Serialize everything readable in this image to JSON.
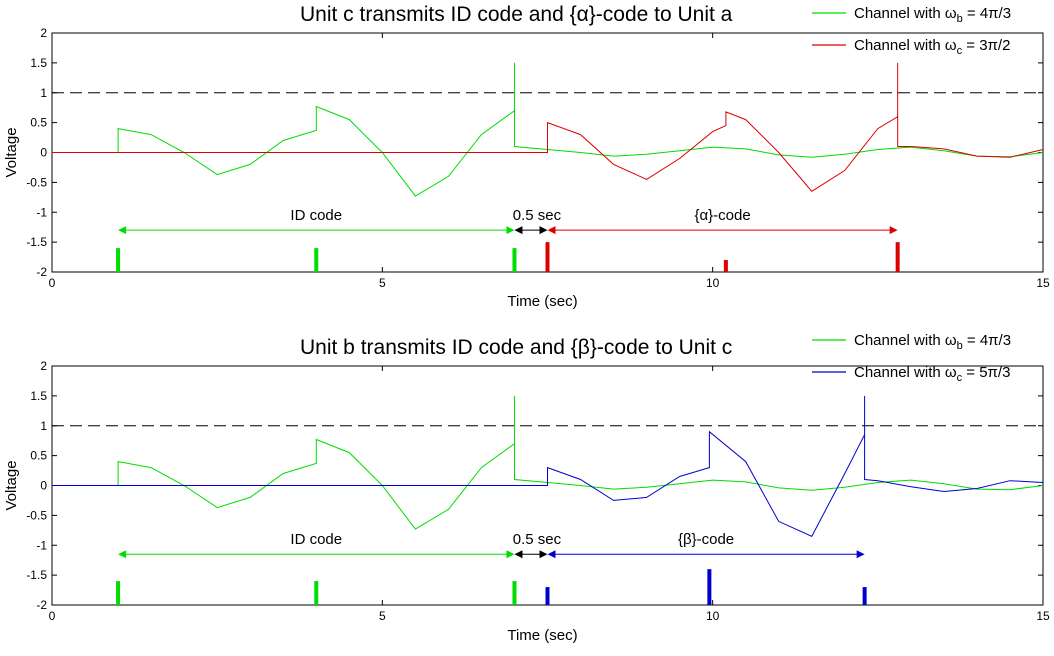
{
  "chart_data": [
    {
      "type": "line",
      "title": "Unit c transmits ID code and {α}-code to Unit a",
      "xlabel": "Time (sec)",
      "ylabel": "Voltage",
      "xlim": [
        0,
        15
      ],
      "ylim": [
        -2,
        2
      ],
      "xticks": [
        0,
        5,
        10,
        15
      ],
      "xtick_labels": [
        "0",
        "5",
        "10",
        "15"
      ],
      "yticks": [
        -2,
        -1.5,
        -1,
        -0.5,
        0,
        0.5,
        1,
        1.5,
        2
      ],
      "ytick_labels": [
        "-2",
        "-1.5",
        "-1",
        "-0.5",
        "0",
        "0.5",
        "1",
        "1.5",
        "2"
      ],
      "grid": false,
      "legend_position": "top-right",
      "threshold": 1,
      "series": [
        {
          "name": "Channel with ωb = 4π/3",
          "legend_sub": "b",
          "legend_value": "= 4π/3",
          "color": "#00dd00",
          "x": [
            0,
            1,
            1,
            1.5,
            2,
            2.5,
            3,
            3.5,
            4,
            4,
            4.5,
            5,
            5.5,
            6,
            6.5,
            7,
            7,
            7.5,
            8,
            8.5,
            9,
            9.5,
            10,
            10.5,
            11,
            11.5,
            12,
            12.5,
            13,
            13.5,
            14,
            14.5,
            15
          ],
          "y": [
            0,
            0,
            0.4,
            0.3,
            0.0,
            -0.37,
            -0.2,
            0.2,
            0.37,
            0.77,
            0.55,
            0.0,
            -0.73,
            -0.4,
            0.3,
            0.7,
            0.1,
            0.05,
            0.0,
            -0.06,
            -0.03,
            0.03,
            0.09,
            0.06,
            -0.04,
            -0.08,
            -0.03,
            0.05,
            0.09,
            0.03,
            -0.06,
            -0.07,
            0.0
          ]
        },
        {
          "name": "Channel with ωc = 3π/2",
          "legend_sub": "c",
          "legend_value": "= 3π/2",
          "color": "#dd0000",
          "x": [
            0,
            7.5,
            7.5,
            8,
            8.5,
            9,
            9.5,
            10,
            10.2,
            10.2,
            10.5,
            11,
            11.5,
            12,
            12.5,
            12.8,
            12.8,
            13,
            13.5,
            14,
            14.5,
            15
          ],
          "y": [
            0,
            0,
            0.5,
            0.3,
            -0.2,
            -0.45,
            -0.1,
            0.35,
            0.45,
            0.68,
            0.55,
            0.0,
            -0.65,
            -0.3,
            0.4,
            0.6,
            0.1,
            0.1,
            0.06,
            -0.06,
            -0.08,
            0.05
          ]
        }
      ],
      "markers": [
        {
          "x": 1,
          "height": 0.4,
          "color": "#00dd00"
        },
        {
          "x": 4,
          "height": 0.4,
          "color": "#00dd00"
        },
        {
          "x": 7,
          "height": 0.4,
          "color": "#00dd00"
        },
        {
          "x": 7.5,
          "height": 0.5,
          "color": "#dd0000"
        },
        {
          "x": 10.2,
          "height": 0.2,
          "color": "#dd0000"
        },
        {
          "x": 12.8,
          "height": 0.5,
          "color": "#dd0000"
        }
      ],
      "annotations": [
        {
          "text": "ID code",
          "x1": 1,
          "x2": 7,
          "y": -1.3,
          "color": "#00dd00"
        },
        {
          "text": "0.5 sec",
          "x1": 7,
          "x2": 7.5,
          "y": -1.3,
          "color": "#000000"
        },
        {
          "text": "{α}-code",
          "x1": 7.5,
          "x2": 12.8,
          "y": -1.3,
          "color": "#dd0000"
        }
      ]
    },
    {
      "type": "line",
      "title": "Unit b transmits ID code and {β}-code to Unit c",
      "xlabel": "Time (sec)",
      "ylabel": "Voltage",
      "xlim": [
        0,
        15
      ],
      "ylim": [
        -2,
        2
      ],
      "xticks": [
        0,
        5,
        10,
        15
      ],
      "xtick_labels": [
        "0",
        "5",
        "10",
        "15"
      ],
      "yticks": [
        -2,
        -1.5,
        -1,
        -0.5,
        0,
        0.5,
        1,
        1.5,
        2
      ],
      "ytick_labels": [
        "-2",
        "-1.5",
        "-1",
        "-0.5",
        "0",
        "0.5",
        "1",
        "1.5",
        "2"
      ],
      "grid": false,
      "legend_position": "top-right",
      "threshold": 1,
      "series": [
        {
          "name": "Channel with ωb = 4π/3",
          "legend_sub": "b",
          "legend_value": "= 4π/3",
          "color": "#00dd00",
          "x": [
            0,
            1,
            1,
            1.5,
            2,
            2.5,
            3,
            3.5,
            4,
            4,
            4.5,
            5,
            5.5,
            6,
            6.5,
            7,
            7,
            7.5,
            8,
            8.5,
            9,
            9.5,
            10,
            10.5,
            11,
            11.5,
            12,
            12.5,
            13,
            13.5,
            14,
            14.5,
            15
          ],
          "y": [
            0,
            0,
            0.4,
            0.3,
            0.0,
            -0.37,
            -0.2,
            0.2,
            0.37,
            0.77,
            0.55,
            0.0,
            -0.73,
            -0.4,
            0.3,
            0.7,
            0.1,
            0.05,
            0.0,
            -0.06,
            -0.03,
            0.03,
            0.09,
            0.06,
            -0.04,
            -0.08,
            -0.03,
            0.05,
            0.09,
            0.03,
            -0.06,
            -0.07,
            0.0
          ]
        },
        {
          "name": "Channel with ωc = 5π/3",
          "legend_sub": "c",
          "legend_value": "= 5π/3",
          "color": "#0000cc",
          "x": [
            0,
            7.5,
            7.5,
            8,
            8.5,
            9,
            9.5,
            9.95,
            9.95,
            10.5,
            11,
            11.5,
            12,
            12.3,
            12.3,
            12.5,
            13,
            13.5,
            14,
            14.5,
            15
          ],
          "y": [
            0,
            0,
            0.3,
            0.1,
            -0.25,
            -0.2,
            0.15,
            0.3,
            0.9,
            0.4,
            -0.6,
            -0.85,
            0.2,
            0.85,
            0.1,
            0.08,
            -0.02,
            -0.1,
            -0.05,
            0.08,
            0.05
          ]
        }
      ],
      "markers": [
        {
          "x": 1,
          "height": 0.4,
          "color": "#00dd00"
        },
        {
          "x": 4,
          "height": 0.4,
          "color": "#00dd00"
        },
        {
          "x": 7,
          "height": 0.4,
          "color": "#00dd00"
        },
        {
          "x": 7.5,
          "height": 0.3,
          "color": "#0000cc"
        },
        {
          "x": 9.95,
          "height": 0.6,
          "color": "#0000cc"
        },
        {
          "x": 12.3,
          "height": 0.3,
          "color": "#0000cc"
        }
      ],
      "annotations": [
        {
          "text": "ID code",
          "x1": 1,
          "x2": 7,
          "y": -1.15,
          "color": "#00dd00"
        },
        {
          "text": "0.5 sec",
          "x1": 7,
          "x2": 7.5,
          "y": -1.15,
          "color": "#000000"
        },
        {
          "text": "{β}-code",
          "x1": 7.5,
          "x2": 12.3,
          "y": -1.15,
          "color": "#0000cc"
        }
      ]
    }
  ]
}
